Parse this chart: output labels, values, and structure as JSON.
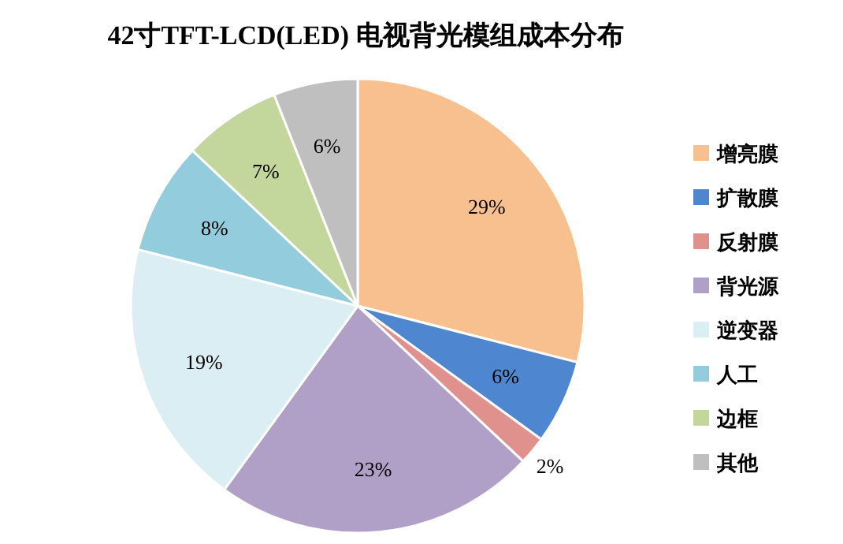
{
  "chart_data": {
    "type": "pie",
    "title": "42寸TFT-LCD(LED) 电视背光模组成本分布",
    "categories": [
      "增亮膜",
      "扩散膜",
      "反射膜",
      "背光源",
      "逆变器",
      "人工",
      "边框",
      "其他"
    ],
    "values": [
      29,
      6,
      2,
      23,
      19,
      8,
      7,
      6
    ],
    "value_labels": [
      "29%",
      "6%",
      "2%",
      "23%",
      "19%",
      "8%",
      "7%",
      "6%"
    ],
    "colors": [
      "#f9c08f",
      "#4f86d0",
      "#e0918e",
      "#b09fc6",
      "#dbeef4",
      "#93cddd",
      "#c3d69b",
      "#bfbfbf"
    ],
    "legend": "right"
  }
}
